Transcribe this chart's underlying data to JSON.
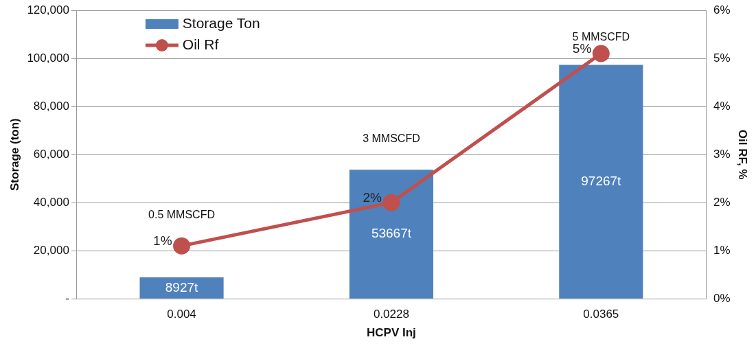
{
  "chart_data": {
    "type": "bar",
    "xlabel": "HCPV Inj",
    "ylabel": "Storage (ton)",
    "y2label": "Oil RF, %",
    "categories": [
      "0.004",
      "0.0228",
      "0.0365"
    ],
    "series": [
      {
        "name": "Storage Ton",
        "color": "#4f81bd",
        "values": [
          8927,
          53667,
          97267
        ],
        "value_labels": [
          "8927t",
          "53667t",
          "97267t"
        ]
      },
      {
        "name": "Oil Rf",
        "type": "line",
        "axis": "y2",
        "color": "#c0504d",
        "values": [
          1.1,
          2.0,
          5.1
        ],
        "value_labels": [
          "1%",
          "2%",
          "5%"
        ],
        "marker": "circle"
      }
    ],
    "ylim": [
      0,
      120000
    ],
    "yticks": [
      {
        "value": 0,
        "label": "-"
      },
      {
        "value": 20000,
        "label": "20,000"
      },
      {
        "value": 40000,
        "label": "40,000"
      },
      {
        "value": 60000,
        "label": "60,000"
      },
      {
        "value": 80000,
        "label": "80,000"
      },
      {
        "value": 100000,
        "label": "100,000"
      },
      {
        "value": 120000,
        "label": "120,000"
      }
    ],
    "y2lim": [
      0,
      6
    ],
    "y2ticks": [
      {
        "value": 0,
        "label": "0%"
      },
      {
        "value": 1,
        "label": "1%"
      },
      {
        "value": 2,
        "label": "2%"
      },
      {
        "value": 3,
        "label": "3%"
      },
      {
        "value": 4,
        "label": "4%"
      },
      {
        "value": 5,
        "label": "5%"
      },
      {
        "value": 6,
        "label": "6%"
      }
    ],
    "annotations": [
      "0.5 MMSCFD",
      "3 MMSCFD",
      "5 MMSCFD"
    ],
    "grid": "y",
    "legend": "top left"
  }
}
